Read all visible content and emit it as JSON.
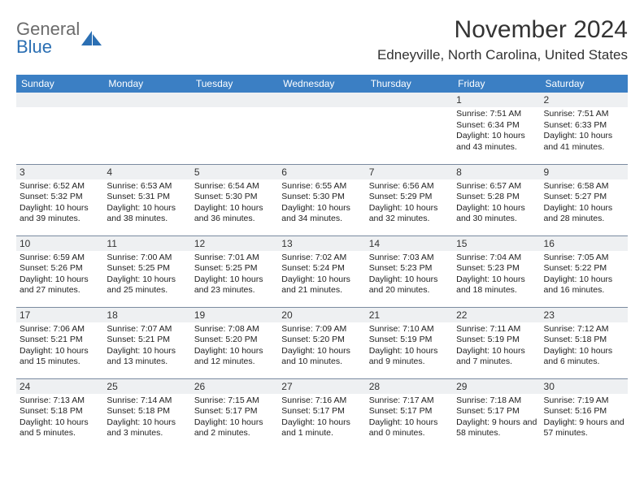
{
  "brand": {
    "word1": "General",
    "word2": "Blue",
    "word1_color": "#6b6b6b",
    "word2_color": "#2b6fb3",
    "icon_color": "#2b6fb3"
  },
  "header": {
    "month_title": "November 2024",
    "location": "Edneyville, North Carolina, United States"
  },
  "colors": {
    "header_bg": "#3b7fc4",
    "header_text": "#ffffff",
    "daynum_bg": "#eef0f2",
    "cell_border": "#7a8aa0",
    "body_text": "#222222"
  },
  "daynames": [
    "Sunday",
    "Monday",
    "Tuesday",
    "Wednesday",
    "Thursday",
    "Friday",
    "Saturday"
  ],
  "weeks": [
    [
      null,
      null,
      null,
      null,
      null,
      {
        "n": "1",
        "sr": "7:51 AM",
        "ss": "6:34 PM",
        "dl": "10 hours and 43 minutes."
      },
      {
        "n": "2",
        "sr": "7:51 AM",
        "ss": "6:33 PM",
        "dl": "10 hours and 41 minutes."
      }
    ],
    [
      {
        "n": "3",
        "sr": "6:52 AM",
        "ss": "5:32 PM",
        "dl": "10 hours and 39 minutes."
      },
      {
        "n": "4",
        "sr": "6:53 AM",
        "ss": "5:31 PM",
        "dl": "10 hours and 38 minutes."
      },
      {
        "n": "5",
        "sr": "6:54 AM",
        "ss": "5:30 PM",
        "dl": "10 hours and 36 minutes."
      },
      {
        "n": "6",
        "sr": "6:55 AM",
        "ss": "5:30 PM",
        "dl": "10 hours and 34 minutes."
      },
      {
        "n": "7",
        "sr": "6:56 AM",
        "ss": "5:29 PM",
        "dl": "10 hours and 32 minutes."
      },
      {
        "n": "8",
        "sr": "6:57 AM",
        "ss": "5:28 PM",
        "dl": "10 hours and 30 minutes."
      },
      {
        "n": "9",
        "sr": "6:58 AM",
        "ss": "5:27 PM",
        "dl": "10 hours and 28 minutes."
      }
    ],
    [
      {
        "n": "10",
        "sr": "6:59 AM",
        "ss": "5:26 PM",
        "dl": "10 hours and 27 minutes."
      },
      {
        "n": "11",
        "sr": "7:00 AM",
        "ss": "5:25 PM",
        "dl": "10 hours and 25 minutes."
      },
      {
        "n": "12",
        "sr": "7:01 AM",
        "ss": "5:25 PM",
        "dl": "10 hours and 23 minutes."
      },
      {
        "n": "13",
        "sr": "7:02 AM",
        "ss": "5:24 PM",
        "dl": "10 hours and 21 minutes."
      },
      {
        "n": "14",
        "sr": "7:03 AM",
        "ss": "5:23 PM",
        "dl": "10 hours and 20 minutes."
      },
      {
        "n": "15",
        "sr": "7:04 AM",
        "ss": "5:23 PM",
        "dl": "10 hours and 18 minutes."
      },
      {
        "n": "16",
        "sr": "7:05 AM",
        "ss": "5:22 PM",
        "dl": "10 hours and 16 minutes."
      }
    ],
    [
      {
        "n": "17",
        "sr": "7:06 AM",
        "ss": "5:21 PM",
        "dl": "10 hours and 15 minutes."
      },
      {
        "n": "18",
        "sr": "7:07 AM",
        "ss": "5:21 PM",
        "dl": "10 hours and 13 minutes."
      },
      {
        "n": "19",
        "sr": "7:08 AM",
        "ss": "5:20 PM",
        "dl": "10 hours and 12 minutes."
      },
      {
        "n": "20",
        "sr": "7:09 AM",
        "ss": "5:20 PM",
        "dl": "10 hours and 10 minutes."
      },
      {
        "n": "21",
        "sr": "7:10 AM",
        "ss": "5:19 PM",
        "dl": "10 hours and 9 minutes."
      },
      {
        "n": "22",
        "sr": "7:11 AM",
        "ss": "5:19 PM",
        "dl": "10 hours and 7 minutes."
      },
      {
        "n": "23",
        "sr": "7:12 AM",
        "ss": "5:18 PM",
        "dl": "10 hours and 6 minutes."
      }
    ],
    [
      {
        "n": "24",
        "sr": "7:13 AM",
        "ss": "5:18 PM",
        "dl": "10 hours and 5 minutes."
      },
      {
        "n": "25",
        "sr": "7:14 AM",
        "ss": "5:18 PM",
        "dl": "10 hours and 3 minutes."
      },
      {
        "n": "26",
        "sr": "7:15 AM",
        "ss": "5:17 PM",
        "dl": "10 hours and 2 minutes."
      },
      {
        "n": "27",
        "sr": "7:16 AM",
        "ss": "5:17 PM",
        "dl": "10 hours and 1 minute."
      },
      {
        "n": "28",
        "sr": "7:17 AM",
        "ss": "5:17 PM",
        "dl": "10 hours and 0 minutes."
      },
      {
        "n": "29",
        "sr": "7:18 AM",
        "ss": "5:17 PM",
        "dl": "9 hours and 58 minutes."
      },
      {
        "n": "30",
        "sr": "7:19 AM",
        "ss": "5:16 PM",
        "dl": "9 hours and 57 minutes."
      }
    ]
  ],
  "labels": {
    "sunrise_prefix": "Sunrise: ",
    "sunset_prefix": "Sunset: ",
    "daylight_prefix": "Daylight: "
  }
}
